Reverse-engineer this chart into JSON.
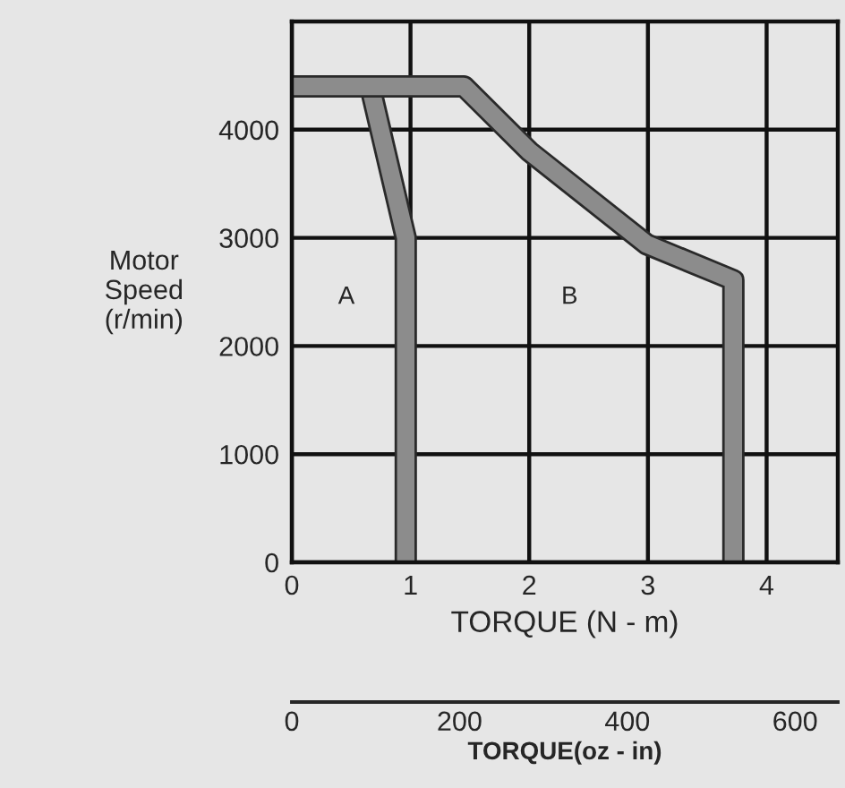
{
  "chart_data": {
    "type": "line",
    "ylabel": "Motor\nSpeed\n(r/min)",
    "xlabel": "TORQUE (N - m)",
    "x2label": "TORQUE(oz - in)",
    "xlim": [
      0,
      4.6
    ],
    "xticks": [
      0,
      1,
      2,
      3,
      4
    ],
    "ylim": [
      0,
      5000
    ],
    "yticks": [
      0,
      1000,
      2000,
      3000,
      4000
    ],
    "x2lim": [
      0,
      651
    ],
    "x2ticks": [
      0,
      200,
      400,
      600
    ],
    "grid": true,
    "marker": "none",
    "line_style": "solid",
    "series": [
      {
        "color": "#8c8c8c",
        "x": [
          0,
          0.66,
          0.96,
          0.96
        ],
        "values": [
          4400,
          4400,
          3000,
          0
        ]
      },
      {
        "color": "#8c8c8c",
        "x": [
          0,
          1.45,
          2.0,
          2.99,
          3.72,
          3.72
        ],
        "values": [
          4400,
          4400,
          3800,
          2940,
          2610,
          0
        ]
      }
    ],
    "annotations": [
      "A",
      "B"
    ]
  }
}
